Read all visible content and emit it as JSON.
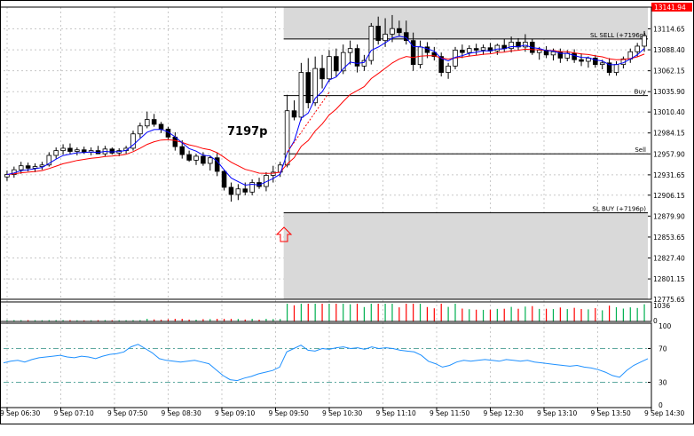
{
  "chart_data": {
    "type": "candlestick",
    "price_axis": {
      "min": 12775.65,
      "max": 13141.94,
      "ticks": [
        13114.65,
        13088.4,
        13062.15,
        13035.9,
        13010.4,
        12984.15,
        12957.9,
        12931.65,
        12906.15,
        12879.9,
        12853.65,
        12827.4,
        12801.15,
        12775.65
      ],
      "tick_labels": [
        "13114.65",
        "13088.40",
        "13062.15",
        "13035.90",
        "13010.40",
        "12984.15",
        "12957.90",
        "12931.65",
        "12906.15",
        "12879.90",
        "12853.65",
        "12827.40",
        "12801.15",
        "12775.65"
      ],
      "current_price": 13141.94,
      "current_price_label": "13141.94",
      "current_price_color": "#ff0000"
    },
    "time_axis": {
      "labels": [
        "9 Sep 06:30",
        "9 Sep 07:10",
        "9 Sep 07:50",
        "9 Sep 08:30",
        "9 Sep 09:10",
        "9 Sep 09:50",
        "9 Sep 10:30",
        "9 Sep 11:10",
        "9 Sep 11:50",
        "9 Sep 12:30",
        "9 Sep 13:10",
        "9 Sep 13:50",
        "9 Sep 14:30"
      ]
    },
    "levels": [
      {
        "label": "SL SELL (+7196p)",
        "price": 13102
      },
      {
        "label": "Buy",
        "price": 13031
      },
      {
        "label": "Sell",
        "price": 12958
      },
      {
        "label": "SL BUY (+7196p)",
        "price": 12884
      }
    ],
    "shaded_zones": [
      {
        "from_price": 13102,
        "to_price": 13141.94
      },
      {
        "from_price": 12775.65,
        "to_price": 12884
      }
    ],
    "annotation": {
      "text": "7197p"
    },
    "candles": [
      [
        12929,
        12937,
        12924,
        12932
      ],
      [
        12932,
        12942,
        12928,
        12938
      ],
      [
        12938,
        12948,
        12933,
        12943
      ],
      [
        12943,
        12947,
        12936,
        12940
      ],
      [
        12940,
        12946,
        12935,
        12942
      ],
      [
        12942,
        12948,
        12938,
        12944
      ],
      [
        12944,
        12960,
        12942,
        12956
      ],
      [
        12956,
        12966,
        12952,
        12962
      ],
      [
        12962,
        12970,
        12957,
        12965
      ],
      [
        12965,
        12971,
        12958,
        12961
      ],
      [
        12961,
        12966,
        12956,
        12963
      ],
      [
        12963,
        12967,
        12958,
        12960
      ],
      [
        12960,
        12966,
        12956,
        12962
      ],
      [
        12962,
        12968,
        12958,
        12958
      ],
      [
        12958,
        12968,
        12955,
        12964
      ],
      [
        12964,
        12966,
        12957,
        12959
      ],
      [
        12959,
        12965,
        12955,
        12962
      ],
      [
        12962,
        12968,
        12958,
        12965
      ],
      [
        12965,
        12987,
        12962,
        12983
      ],
      [
        12983,
        12997,
        12978,
        12993
      ],
      [
        12993,
        13011,
        12990,
        13001
      ],
      [
        13001,
        13008,
        12992,
        12995
      ],
      [
        12995,
        12998,
        12984,
        12989
      ],
      [
        12989,
        12992,
        12976,
        12979
      ],
      [
        12979,
        12985,
        12962,
        12967
      ],
      [
        12967,
        12975,
        12952,
        12957
      ],
      [
        12957,
        12962,
        12948,
        12950
      ],
      [
        12950,
        12958,
        12944,
        12955
      ],
      [
        12955,
        12960,
        12943,
        12946
      ],
      [
        12946,
        12956,
        12937,
        12953
      ],
      [
        12953,
        12959,
        12930,
        12936
      ],
      [
        12936,
        12938,
        12912,
        12916
      ],
      [
        12916,
        12922,
        12898,
        12907
      ],
      [
        12907,
        12920,
        12900,
        12914
      ],
      [
        12914,
        12922,
        12906,
        12910
      ],
      [
        12910,
        12926,
        12906,
        12922
      ],
      [
        12922,
        12928,
        12914,
        12917
      ],
      [
        12917,
        12935,
        12911,
        12931
      ],
      [
        12931,
        12943,
        12922,
        12935
      ],
      [
        12935,
        12948,
        12929,
        12944
      ],
      [
        12944,
        13032,
        12941,
        13012
      ],
      [
        13012,
        13025,
        13000,
        13004
      ],
      [
        13004,
        13072,
        13000,
        13060
      ],
      [
        13060,
        13078,
        13015,
        13022
      ],
      [
        13022,
        13080,
        13018,
        13065
      ],
      [
        13065,
        13082,
        13040,
        13052
      ],
      [
        13052,
        13088,
        13048,
        13080
      ],
      [
        13080,
        13090,
        13055,
        13062
      ],
      [
        13062,
        13095,
        13058,
        13085
      ],
      [
        13085,
        13100,
        13070,
        13090
      ],
      [
        13090,
        13095,
        13060,
        13068
      ],
      [
        13068,
        13082,
        13062,
        13075
      ],
      [
        13075,
        13122,
        13070,
        13118
      ],
      [
        13118,
        13130,
        13095,
        13100
      ],
      [
        13100,
        13128,
        13092,
        13108
      ],
      [
        13108,
        13132,
        13098,
        13115
      ],
      [
        13115,
        13125,
        13105,
        13110
      ],
      [
        13110,
        13125,
        13095,
        13100
      ],
      [
        13100,
        13110,
        13062,
        13070
      ],
      [
        13070,
        13100,
        13065,
        13092
      ],
      [
        13092,
        13098,
        13078,
        13085
      ],
      [
        13085,
        13092,
        13075,
        13080
      ],
      [
        13080,
        13085,
        13055,
        13060
      ],
      [
        13060,
        13072,
        13052,
        13068
      ],
      [
        13068,
        13092,
        13064,
        13088
      ],
      [
        13088,
        13095,
        13078,
        13085
      ],
      [
        13085,
        13094,
        13080,
        13090
      ],
      [
        13090,
        13096,
        13082,
        13088
      ],
      [
        13088,
        13095,
        13082,
        13091
      ],
      [
        13091,
        13097,
        13084,
        13087
      ],
      [
        13087,
        13096,
        13082,
        13094
      ],
      [
        13094,
        13102,
        13086,
        13090
      ],
      [
        13090,
        13105,
        13085,
        13098
      ],
      [
        13098,
        13103,
        13088,
        13092
      ],
      [
        13092,
        13108,
        13086,
        13098
      ],
      [
        13098,
        13102,
        13082,
        13085
      ],
      [
        13085,
        13092,
        13076,
        13088
      ],
      [
        13088,
        13093,
        13078,
        13082
      ],
      [
        13082,
        13090,
        13075,
        13086
      ],
      [
        13086,
        13090,
        13072,
        13078
      ],
      [
        13078,
        13088,
        13074,
        13084
      ],
      [
        13084,
        13089,
        13072,
        13076
      ],
      [
        13076,
        13084,
        13068,
        13074
      ],
      [
        13074,
        13080,
        13066,
        13078
      ],
      [
        13078,
        13082,
        13066,
        13070
      ],
      [
        13070,
        13076,
        13064,
        13072
      ],
      [
        13072,
        13078,
        13056,
        13060
      ],
      [
        13060,
        13074,
        13056,
        13070
      ],
      [
        13070,
        13080,
        13065,
        13077
      ],
      [
        13077,
        13090,
        13072,
        13086
      ],
      [
        13086,
        13097,
        13080,
        13093
      ],
      [
        13093,
        13112,
        13086,
        13106
      ]
    ],
    "ma_fast_color": "#0000ff",
    "ma_slow_color": "#ff0000",
    "volume_panel": {
      "ticks": [
        1036,
        0
      ],
      "tick_labels": [
        "1036",
        "0"
      ],
      "up_color": "#00b050",
      "down_color": "#ff0000"
    },
    "oscillator_panel": {
      "min": 0,
      "max": 100,
      "ticks": [
        100,
        70,
        30,
        0
      ],
      "tick_labels": [
        "100",
        "70",
        "30",
        "0"
      ],
      "levels": [
        70,
        30
      ],
      "line_color": "#1e90ff",
      "values": [
        53,
        55,
        56,
        54,
        57,
        59,
        60,
        61,
        62,
        60,
        59,
        61,
        60,
        58,
        61,
        63,
        64,
        66,
        72,
        75,
        70,
        65,
        58,
        56,
        55,
        54,
        55,
        56,
        54,
        52,
        45,
        38,
        33,
        32,
        35,
        37,
        40,
        42,
        44,
        48,
        66,
        70,
        74,
        68,
        67,
        70,
        69,
        71,
        72,
        70,
        71,
        69,
        72,
        70,
        71,
        70,
        68,
        67,
        66,
        62,
        55,
        52,
        48,
        50,
        54,
        56,
        55,
        56,
        57,
        56,
        55,
        57,
        56,
        55,
        56,
        54,
        53,
        52,
        51,
        50,
        49,
        50,
        48,
        47,
        45,
        42,
        38,
        36,
        44,
        50,
        54,
        58
      ]
    }
  }
}
